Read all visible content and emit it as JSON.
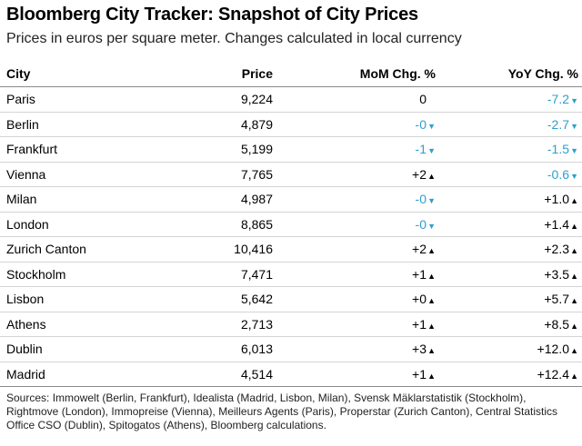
{
  "title": "Bloomberg City Tracker: Snapshot of City Prices",
  "subtitle": "Prices in euros per square meter. Changes calculated in local currency",
  "chart_data": {
    "type": "table",
    "columns": [
      "City",
      "Price",
      "MoM Chg. %",
      "YoY Chg. %"
    ],
    "rows": [
      {
        "city": "Paris",
        "price": "9,224",
        "mom": "0",
        "mom_dir": "none",
        "yoy": "-7.2",
        "yoy_dir": "down"
      },
      {
        "city": "Berlin",
        "price": "4,879",
        "mom": "-0",
        "mom_dir": "down",
        "yoy": "-2.7",
        "yoy_dir": "down"
      },
      {
        "city": "Frankfurt",
        "price": "5,199",
        "mom": "-1",
        "mom_dir": "down",
        "yoy": "-1.5",
        "yoy_dir": "down"
      },
      {
        "city": "Vienna",
        "price": "7,765",
        "mom": "+2",
        "mom_dir": "up",
        "yoy": "-0.6",
        "yoy_dir": "down"
      },
      {
        "city": "Milan",
        "price": "4,987",
        "mom": "-0",
        "mom_dir": "down",
        "yoy": "+1.0",
        "yoy_dir": "up"
      },
      {
        "city": "London",
        "price": "8,865",
        "mom": "-0",
        "mom_dir": "down",
        "yoy": "+1.4",
        "yoy_dir": "up"
      },
      {
        "city": "Zurich Canton",
        "price": "10,416",
        "mom": "+2",
        "mom_dir": "up",
        "yoy": "+2.3",
        "yoy_dir": "up"
      },
      {
        "city": "Stockholm",
        "price": "7,471",
        "mom": "+1",
        "mom_dir": "up",
        "yoy": "+3.5",
        "yoy_dir": "up"
      },
      {
        "city": "Lisbon",
        "price": "5,642",
        "mom": "+0",
        "mom_dir": "up",
        "yoy": "+5.7",
        "yoy_dir": "up"
      },
      {
        "city": "Athens",
        "price": "2,713",
        "mom": "+1",
        "mom_dir": "up",
        "yoy": "+8.5",
        "yoy_dir": "up"
      },
      {
        "city": "Dublin",
        "price": "6,013",
        "mom": "+3",
        "mom_dir": "up",
        "yoy": "+12.0",
        "yoy_dir": "up"
      },
      {
        "city": "Madrid",
        "price": "4,514",
        "mom": "+1",
        "mom_dir": "up",
        "yoy": "+12.4",
        "yoy_dir": "up"
      }
    ]
  },
  "sources": "Sources: Immowelt (Berlin, Frankfurt), Idealista (Madrid, Lisbon, Milan), Svensk Mäklarstatistik (Stockholm), Rightmove (London), Immopreise (Vienna), Meilleurs Agents (Paris), Properstar (Zurich Canton), Central Statistics Office CSO (Dublin), Spitogatos (Athens), Bloomberg calculations.",
  "colors": {
    "negative": "#2f9fce",
    "positive": "#000000"
  },
  "icons": {
    "up": "▲",
    "down": "▼"
  }
}
